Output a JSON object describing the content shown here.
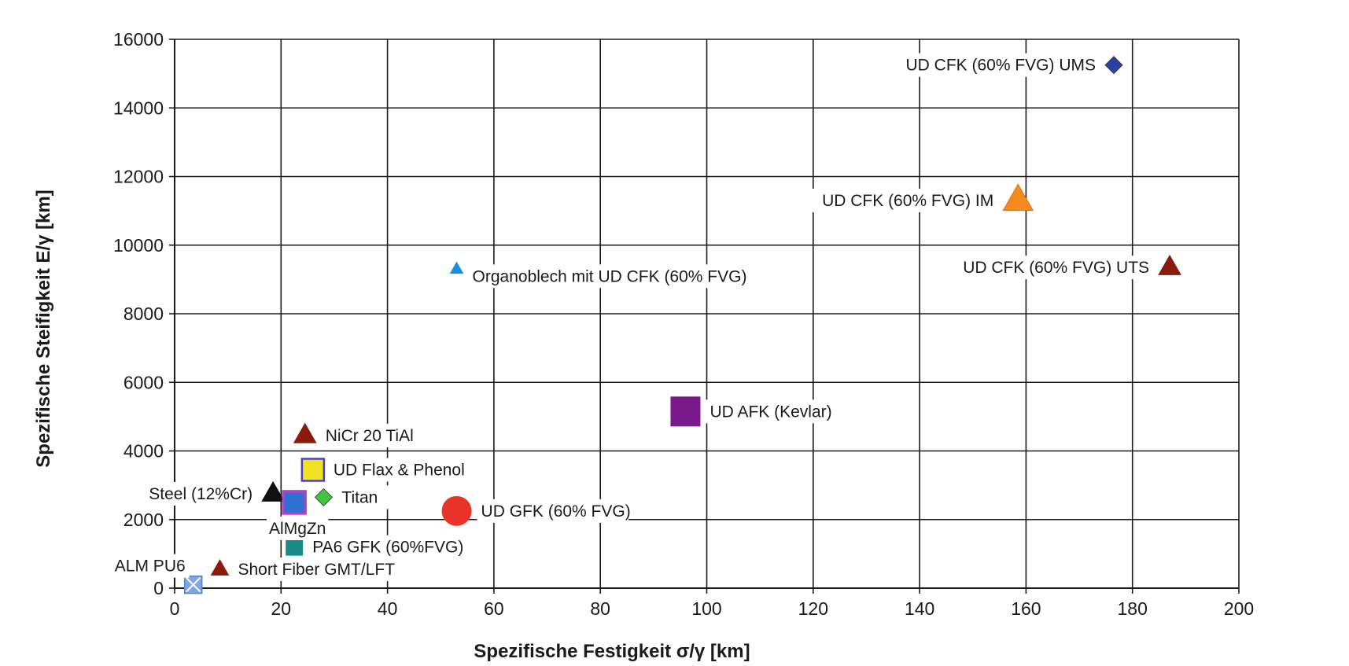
{
  "chart_data": {
    "type": "scatter",
    "title": "",
    "xlabel": "Spezifische Festigkeit  σ/γ [km]",
    "ylabel": "Spezifische Steifigkeit   E/γ [km]",
    "xlim": [
      0,
      200
    ],
    "ylim": [
      0,
      16000
    ],
    "xticks": [
      0,
      20,
      40,
      60,
      80,
      100,
      120,
      140,
      160,
      180,
      200
    ],
    "yticks": [
      0,
      2000,
      4000,
      6000,
      8000,
      10000,
      12000,
      14000,
      16000
    ],
    "grid": true,
    "legend": "none",
    "points": [
      {
        "label": "UD CFK (60% FVG)  UMS",
        "x": 176.5,
        "y": 15250,
        "marker": "diamond",
        "color": "#2b3fa8",
        "size": "small",
        "label_side": "left"
      },
      {
        "label": "UD CFK (60% FVG)  IM",
        "x": 158.5,
        "y": 11300,
        "marker": "triangle",
        "color": "#f58a1f",
        "size": "large",
        "label_side": "left"
      },
      {
        "label": "UD CFK (60% FVG) UTS",
        "x": 187,
        "y": 9350,
        "marker": "triangle",
        "color": "#8b1a0e",
        "size": "medium",
        "label_side": "left"
      },
      {
        "label": "Organoblech mit UD CFK (60% FVG)",
        "x": 53,
        "y": 9300,
        "marker": "triangle",
        "color": "#1a8fe0",
        "size": "tiny",
        "label_side": "right"
      },
      {
        "label": "UD AFK (Kevlar)",
        "x": 96,
        "y": 5150,
        "marker": "square",
        "color": "#7a1a8a",
        "size": "large",
        "label_side": "right"
      },
      {
        "label": "NiCr 20 TiAl",
        "x": 24.5,
        "y": 4450,
        "marker": "triangle",
        "color": "#8b1a0e",
        "size": "medium",
        "label_side": "right"
      },
      {
        "label": "UD Flax & Phenol",
        "x": 26,
        "y": 3450,
        "marker": "square-outlined",
        "color": "#f2e224",
        "size": "medium",
        "label_side": "right"
      },
      {
        "label": "Steel (12%Cr)",
        "x": 18.5,
        "y": 2750,
        "marker": "triangle",
        "color": "#111111",
        "size": "medium",
        "label_side": "left"
      },
      {
        "label": "Titan",
        "x": 28,
        "y": 2650,
        "marker": "diamond",
        "color": "#3ec43e",
        "size": "small",
        "label_side": "right"
      },
      {
        "label": "AlMgZn",
        "x": 22.5,
        "y": 2500,
        "marker": "square-outlined-purple",
        "color": "#2f6fd0",
        "size": "medium",
        "label_side": "below"
      },
      {
        "label": "UD GFK (60% FVG)",
        "x": 53,
        "y": 2250,
        "marker": "circle",
        "color": "#e8332a",
        "size": "large",
        "label_side": "right"
      },
      {
        "label": "PA6 GFK (60%FVG)",
        "x": 22.5,
        "y": 1200,
        "marker": "square",
        "color": "#1a8a86",
        "size": "small",
        "label_side": "right"
      },
      {
        "label": "Short Fiber GMT/LFT",
        "x": 8.5,
        "y": 550,
        "marker": "triangle",
        "color": "#8b1a0e",
        "size": "small",
        "label_side": "right"
      },
      {
        "label": "ALM PU6",
        "x": 3.5,
        "y": 100,
        "marker": "square-x",
        "color": "#7ea6e0",
        "size": "small",
        "label_side": "upper-left"
      }
    ]
  }
}
